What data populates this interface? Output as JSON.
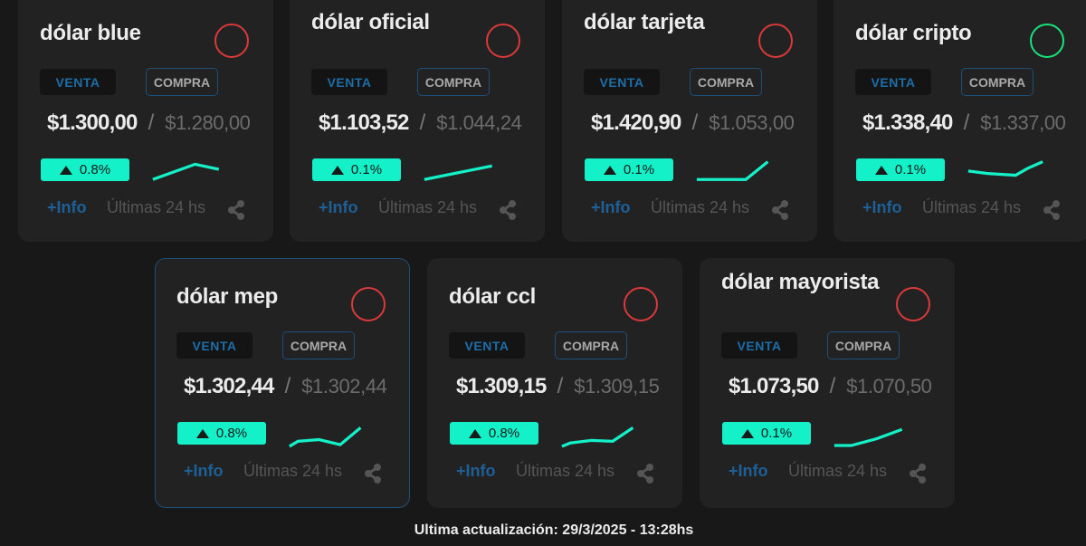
{
  "labels": {
    "venta": "VENTA",
    "compra": "COMPRA",
    "info": "+Info",
    "period": "Últimas 24 hs",
    "separator": "/"
  },
  "colors": {
    "accent": "#14f0c8",
    "status_down": "#d9393a",
    "status_up": "#19e27b",
    "link": "#1d5f96",
    "card_bg": "#222222",
    "page_bg": "#181818"
  },
  "cards": [
    {
      "title": "dólar blue",
      "venta": "$1.300,00",
      "compra": "$1.280,00",
      "change": "0.8%",
      "trend": "down",
      "spark": "2,30 52,12 80,18"
    },
    {
      "title": "dólar oficial",
      "venta": "$1.103,52",
      "compra": "$1.044,24",
      "change": "0.1%",
      "trend": "down",
      "spark": "2,30 82,14"
    },
    {
      "title": "dólar tarjeta",
      "venta": "$1.420,90",
      "compra": "$1.053,00",
      "change": "0.1%",
      "trend": "down",
      "spark": "2,30 60,30 86,9"
    },
    {
      "title": "dólar cripto",
      "venta": "$1.338,40",
      "compra": "$1.337,00",
      "change": "0.1%",
      "trend": "up",
      "spark": "2,20 25,23 58,25 72,17 90,9"
    },
    {
      "title": "dólar mep",
      "venta": "$1.302,44",
      "compra": "$1.302,44",
      "change": "0.8%",
      "trend": "down",
      "spark": "2,34 12,28 37,26 62,32 86,12"
    },
    {
      "title": "dólar ccl",
      "venta": "$1.309,15",
      "compra": "$1.309,15",
      "change": "0.8%",
      "trend": "down",
      "spark": "2,34 12,30 37,27 62,28 86,12"
    },
    {
      "title": "dólar mayorista",
      "venta": "$1.073,50",
      "compra": "$1.070,50",
      "change": "0.1%",
      "trend": "down",
      "spark": "2,33 22,33 52,25 82,14"
    }
  ],
  "footer": {
    "last_update": "Ultima actualización: 29/3/2025 - 13:28hs"
  }
}
